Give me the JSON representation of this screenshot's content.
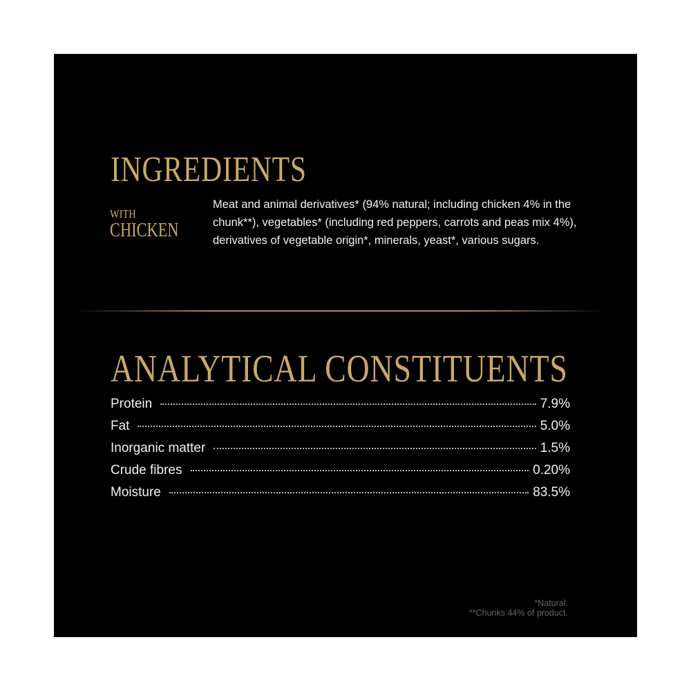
{
  "ingredients": {
    "title": "INGREDIENTS",
    "with_label": "WITH",
    "flavour": "CHICKEN",
    "text": "Meat and animal derivatives* (94% natural; including chicken 4% in the chunk**), vegetables* (including red peppers, carrots and peas mix 4%), derivatives of vegetable origin*, minerals, yeast*, various sugars."
  },
  "analytical": {
    "title": "ANALYTICAL CONSTITUENTS",
    "rows": [
      {
        "label": "Protein",
        "value": "7.9%"
      },
      {
        "label": "Fat",
        "value": "5.0%"
      },
      {
        "label": "Inorganic matter",
        "value": "1.5%"
      },
      {
        "label": "Crude fibres",
        "value": "0.20%"
      },
      {
        "label": "Moisture",
        "value": "83.5%"
      }
    ]
  },
  "footnotes": [
    "*Natural.",
    "**Chunks 44% of product."
  ],
  "colors": {
    "background": "#000000",
    "accent_gold": "#c9a965",
    "text": "#f2f2f2"
  }
}
